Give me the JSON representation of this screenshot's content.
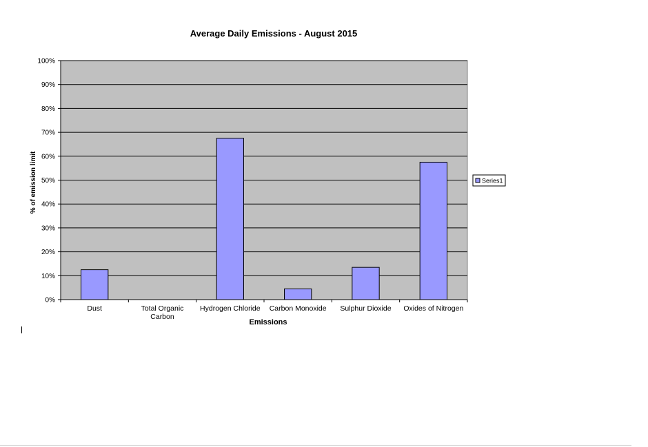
{
  "chart_data": {
    "type": "bar",
    "title": "Average Daily Emissions - August 2015",
    "xlabel": "Emissions",
    "ylabel": "% of emission limit",
    "categories": [
      [
        "Dust"
      ],
      [
        "Total Organic",
        "Carbon"
      ],
      [
        "Hydrogen Chloride"
      ],
      [
        "Carbon Monoxide"
      ],
      [
        "Sulphur Dioxide"
      ],
      [
        "Oxides of Nitrogen"
      ]
    ],
    "series": [
      {
        "name": "Series1",
        "values": [
          12.5,
          0,
          67.5,
          4.5,
          13.5,
          57.5
        ]
      }
    ],
    "ylim": [
      0,
      100
    ],
    "yticks": [
      "0%",
      "10%",
      "20%",
      "30%",
      "40%",
      "50%",
      "60%",
      "70%",
      "80%",
      "90%",
      "100%"
    ],
    "grid": true,
    "legend_position": "right",
    "colors": {
      "bar_fill": "#9999ff",
      "bar_stroke": "#000000",
      "plot_background": "#c0c0c0",
      "gridline": "#000000"
    }
  }
}
